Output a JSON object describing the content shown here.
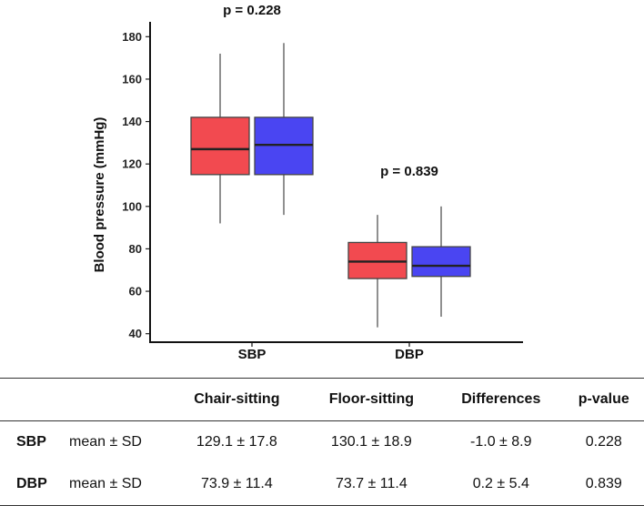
{
  "chart_data": {
    "type": "boxplot",
    "ylabel": "Blood pressure (mmHg)",
    "xlabel": "",
    "ylim": [
      36,
      187
    ],
    "yticks": [
      40,
      60,
      80,
      100,
      120,
      140,
      160,
      180
    ],
    "categories": [
      "SBP",
      "DBP"
    ],
    "series": [
      {
        "name": "Chair-sitting",
        "color": "#f24a50",
        "boxes": [
          {
            "category": "SBP",
            "whisker_low": 92,
            "q1": 115,
            "median": 127,
            "q3": 142,
            "whisker_high": 172
          },
          {
            "category": "DBP",
            "whisker_low": 43,
            "q1": 66,
            "median": 74,
            "q3": 83,
            "whisker_high": 96
          }
        ]
      },
      {
        "name": "Floor-sitting",
        "color": "#4a45f2",
        "boxes": [
          {
            "category": "SBP",
            "whisker_low": 96,
            "q1": 115,
            "median": 129,
            "q3": 142,
            "whisker_high": 177
          },
          {
            "category": "DBP",
            "whisker_low": 48,
            "q1": 67,
            "median": 72,
            "q3": 81,
            "whisker_high": 100
          }
        ]
      }
    ],
    "annotations": [
      {
        "category": "SBP",
        "text": "p = 0.228"
      },
      {
        "category": "DBP",
        "text": "p = 0.839"
      }
    ]
  },
  "table": {
    "headers": [
      "",
      "",
      "Chair-sitting",
      "Floor-sitting",
      "Differences",
      "p-value"
    ],
    "rows": [
      {
        "label": "SBP",
        "stat": "mean ± SD",
        "chair": "129.1 ± 17.8",
        "floor": "130.1 ± 18.9",
        "diff": "-1.0 ± 8.9",
        "p": "0.228"
      },
      {
        "label": "DBP",
        "stat": "mean ± SD",
        "chair": "73.9 ± 11.4",
        "floor": "73.7 ± 11.4",
        "diff": "0.2 ± 5.4",
        "p": "0.839"
      }
    ]
  }
}
